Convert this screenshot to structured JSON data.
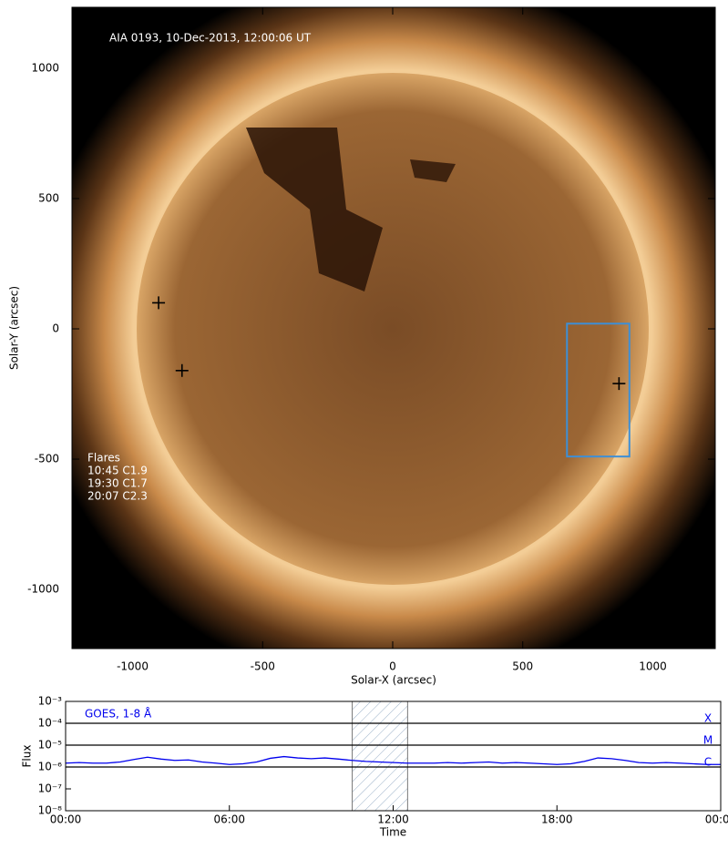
{
  "chart_data": [
    {
      "type": "image",
      "title": "AIA 0193, 10-Dec-2013, 12:00:06 UT",
      "x_label": "Solar-X (arcsec)",
      "y_label": "Solar-Y (arcsec)",
      "xlim": [
        -1233,
        1240
      ],
      "ylim": [
        -1227,
        1234
      ],
      "xticks": [
        -1000,
        -500,
        0,
        500,
        1000
      ],
      "yticks": [
        -1000,
        -500,
        0,
        500,
        1000
      ],
      "markers": {
        "x": [
          -900,
          -810,
          870
        ],
        "y": [
          100,
          -160,
          -210
        ],
        "color": "#000000"
      },
      "box": {
        "x": [
          670,
          910
        ],
        "y": [
          -490,
          20
        ],
        "color": "#3d8fd6"
      },
      "annotation_title": "Flares",
      "annotations": [
        "10:45 C1.9",
        "19:30 C1.7",
        "20:07 C2.3"
      ]
    },
    {
      "type": "line",
      "x_label": "Time",
      "y_label": "Flux",
      "xlim": [
        0,
        24
      ],
      "ylim": [
        1e-08,
        0.001
      ],
      "log_y": true,
      "xticks": [
        {
          "value": 0,
          "label": "00:00"
        },
        {
          "value": 6,
          "label": "06:00"
        },
        {
          "value": 12,
          "label": "12:00"
        },
        {
          "value": 18,
          "label": "18:00"
        },
        {
          "value": 24,
          "label": "00:00"
        }
      ],
      "yticks": [
        {
          "value": 1e-08,
          "label": "10⁻⁸"
        },
        {
          "value": 1e-07,
          "label": "10⁻⁷"
        },
        {
          "value": 1e-06,
          "label": "10⁻⁶"
        },
        {
          "value": 1e-05,
          "label": "10⁻⁵"
        },
        {
          "value": 0.0001,
          "label": "10⁻⁴"
        },
        {
          "value": 0.001,
          "label": "10⁻³"
        }
      ],
      "levels": [
        {
          "value": 0.0001,
          "label": "X"
        },
        {
          "value": 1e-05,
          "label": "M"
        },
        {
          "value": 1e-06,
          "label": "C"
        }
      ],
      "shaded": [
        10.5,
        12.53
      ],
      "x": [
        0,
        0.5,
        1,
        1.5,
        2,
        2.5,
        3,
        3.5,
        4,
        4.5,
        5,
        5.5,
        6,
        6.5,
        7,
        7.5,
        8,
        8.5,
        9,
        9.5,
        10,
        10.5,
        11,
        11.5,
        12,
        12.5,
        13,
        13.5,
        14,
        14.5,
        15,
        15.5,
        16,
        16.5,
        17,
        17.5,
        18,
        18.5,
        19,
        19.5,
        20,
        20.5,
        21,
        21.5,
        22,
        22.5,
        23,
        23.5,
        24
      ],
      "series": [
        {
          "name": "GOES, 1-8 Å",
          "color": "#0000ee",
          "values": [
            1.5e-06,
            1.6e-06,
            1.5e-06,
            1.5e-06,
            1.7e-06,
            2.2e-06,
            2.8e-06,
            2.3e-06,
            2e-06,
            2.1e-06,
            1.7e-06,
            1.5e-06,
            1.3e-06,
            1.4e-06,
            1.7e-06,
            2.5e-06,
            3e-06,
            2.6e-06,
            2.4e-06,
            2.6e-06,
            2.3e-06,
            2e-06,
            1.8e-06,
            1.7e-06,
            1.6e-06,
            1.5e-06,
            1.5e-06,
            1.5e-06,
            1.6e-06,
            1.5e-06,
            1.6e-06,
            1.7e-06,
            1.5e-06,
            1.6e-06,
            1.5e-06,
            1.4e-06,
            1.3e-06,
            1.4e-06,
            1.8e-06,
            2.6e-06,
            2.4e-06,
            2e-06,
            1.6e-06,
            1.5e-06,
            1.6e-06,
            1.5e-06,
            1.4e-06,
            1.3e-06,
            1.3e-06
          ]
        }
      ]
    }
  ]
}
